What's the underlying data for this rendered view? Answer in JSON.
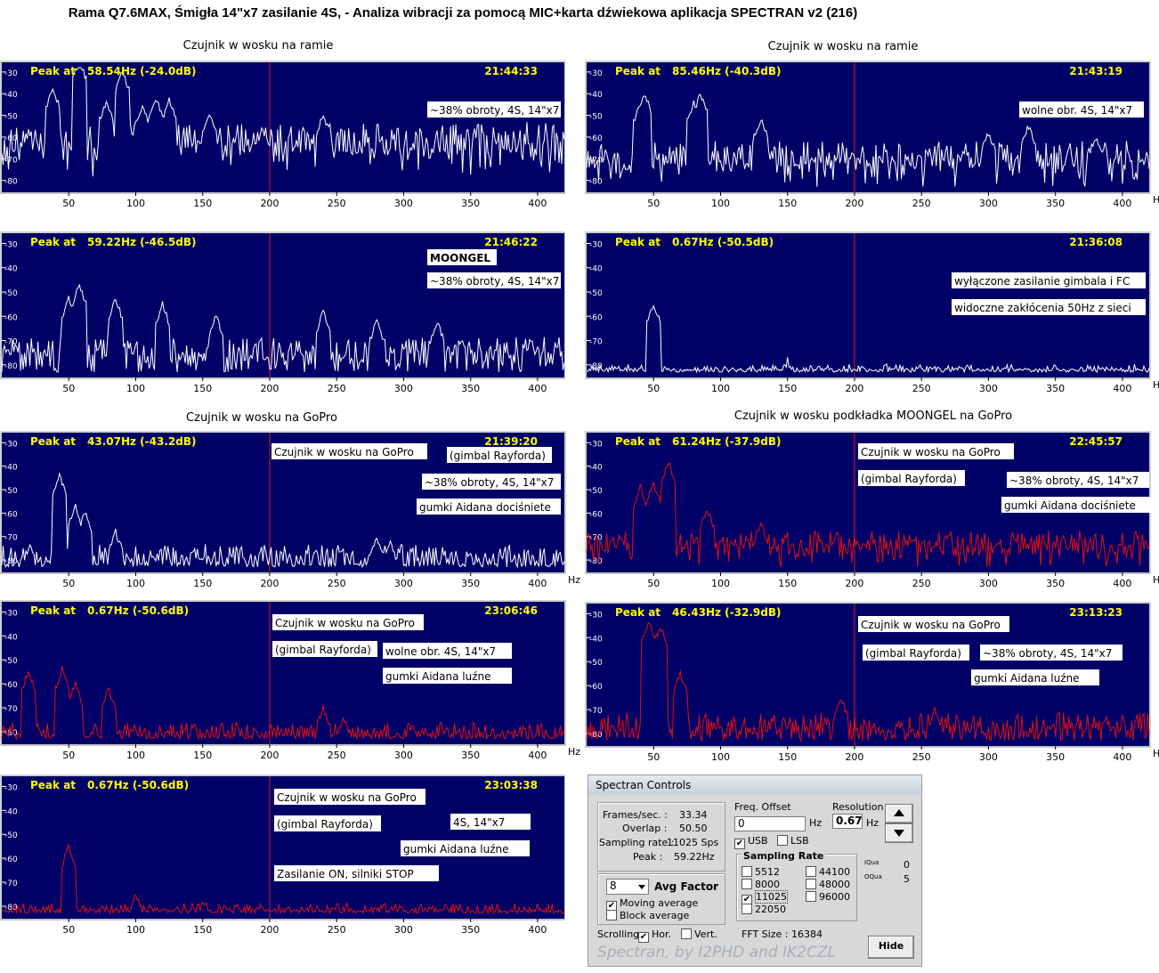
{
  "title": "Rama Q7.6MAX, Śmigła 14\"x7 zasilanie 4S,  - Analiza wibracji za pomocą MIC+karta dźwiekowa aplikacja SPECTRAN v2 (216)",
  "captions": {
    "left_top": "Czujnik w wosku na ramie",
    "right_top": "Czujnik w wosku na ramie",
    "left_mid": "Czujnik w wosku na GoPro",
    "right_mid": "Czujnik w wosku podkładka MOONGEL na GoPro"
  },
  "colors": {
    "plot_bg": "#000066",
    "white_trace": "#ffffff",
    "red_trace": "#dd1111",
    "peak_text": "#ffff00",
    "marker": "#cc2222"
  },
  "chart_data": [
    {
      "type": "line",
      "id": "p1",
      "peak_label": "Peak at",
      "peak_value": "58.54Hz (-24.0dB)",
      "time": "21:44:33",
      "color": "white",
      "xlim": [
        0,
        420
      ],
      "ylim": [
        -83,
        -28
      ],
      "x_ticks": [
        "50",
        "100",
        "150",
        "200",
        "250",
        "300",
        "350",
        "400"
      ],
      "y_ticks": [
        "-30",
        "-40",
        "-50",
        "-60",
        "-70",
        "-80"
      ],
      "x_unit": "Hz",
      "marker_x": 200,
      "annotations": [
        "~38% obroty, 4S, 14\"x7"
      ],
      "peaks": [
        [
          38,
          -38
        ],
        [
          58,
          -25
        ],
        [
          78,
          -44
        ],
        [
          90,
          -30
        ],
        [
          105,
          -46
        ],
        [
          115,
          -42
        ],
        [
          125,
          -43
        ],
        [
          155,
          -50
        ],
        [
          195,
          -57
        ],
        [
          240,
          -50
        ]
      ],
      "floor": -60,
      "noise": 9,
      "decay": 0.01
    },
    {
      "type": "line",
      "id": "p2",
      "peak_label": "Peak at",
      "peak_value": "85.46Hz (-40.3dB)",
      "time": "21:43:19",
      "color": "white",
      "xlim": [
        0,
        420
      ],
      "ylim": [
        -83,
        -28
      ],
      "x_ticks": [
        "50",
        "100",
        "150",
        "200",
        "250",
        "300",
        "350",
        "400"
      ],
      "y_ticks": [
        "-30",
        "-40",
        "-50",
        "-60",
        "-70",
        "-80"
      ],
      "x_unit": "Hz",
      "marker_x": 200,
      "annotations": [
        "wolne obr. 4S, 14\"x7"
      ],
      "peaks": [
        [
          40,
          -45
        ],
        [
          43,
          -40
        ],
        [
          80,
          -44
        ],
        [
          85,
          -40
        ],
        [
          130,
          -52
        ],
        [
          300,
          -58
        ],
        [
          330,
          -55
        ],
        [
          380,
          -60
        ]
      ],
      "floor": -68,
      "noise": 8,
      "decay": 0.0
    },
    {
      "type": "line",
      "id": "p3",
      "peak_label": "Peak at",
      "peak_value": "59.22Hz (-46.5dB)",
      "time": "21:46:22",
      "color": "white",
      "xlim": [
        0,
        420
      ],
      "ylim": [
        -83,
        -28
      ],
      "x_ticks": [
        "50",
        "100",
        "150",
        "200",
        "250",
        "300",
        "350",
        "400"
      ],
      "y_ticks": [
        "-30",
        "-40",
        "-50",
        "-60",
        "-70",
        "-80"
      ],
      "x_unit": "Hz",
      "marker_x": 200,
      "annotations": [
        "MOONGEL",
        "~38% obroty, 4S, 14\"x7"
      ],
      "peaks": [
        [
          50,
          -53
        ],
        [
          58,
          -47
        ],
        [
          85,
          -53
        ],
        [
          120,
          -55
        ],
        [
          160,
          -60
        ],
        [
          240,
          -58
        ],
        [
          280,
          -62
        ],
        [
          325,
          -62
        ],
        [
          395,
          -70
        ]
      ],
      "floor": -74,
      "noise": 7,
      "decay": 0.0
    },
    {
      "type": "line",
      "id": "p4",
      "peak_label": "Peak at",
      "peak_value": "0.67Hz (-50.5dB)",
      "time": "21:36:08",
      "color": "white",
      "xlim": [
        0,
        420
      ],
      "ylim": [
        -83,
        -28
      ],
      "x_ticks": [
        "50",
        "100",
        "150",
        "200",
        "250",
        "300",
        "350",
        "400"
      ],
      "y_ticks": [
        "-30",
        "-40",
        "-50",
        "-60",
        "-70",
        "-80"
      ],
      "x_unit": "Hz",
      "marker_x": 200,
      "annotations": [
        "wyłączone zasilanie gimbala i FC",
        "widoczne zakłócenia 50Hz z sieci"
      ],
      "peaks": [
        [
          50,
          -55
        ],
        [
          150,
          -78
        ]
      ],
      "floor": -82,
      "noise": 3,
      "decay": 0.0
    },
    {
      "type": "line",
      "id": "p5",
      "peak_label": "Peak at",
      "peak_value": "43.07Hz (-43.2dB)",
      "time": "21:39:20",
      "color": "white",
      "xlim": [
        0,
        420
      ],
      "ylim": [
        -83,
        -28
      ],
      "x_ticks": [
        "50",
        "100",
        "150",
        "200",
        "250",
        "300",
        "350",
        "400"
      ],
      "y_ticks": [
        "-30",
        "-40",
        "-50",
        "-60",
        "-70",
        "-80"
      ],
      "x_unit": "Hz",
      "marker_x": 200,
      "annotations": [
        "Czujnik w wosku na GoPro",
        "(gimbal Rayforda)",
        "~38% obroty, 4S, 14\"x7",
        "gumki Aidana dociśniete"
      ],
      "peaks": [
        [
          43,
          -44
        ],
        [
          55,
          -57
        ],
        [
          62,
          -60
        ],
        [
          85,
          -68
        ],
        [
          280,
          -70
        ],
        [
          290,
          -72
        ]
      ],
      "floor": -78,
      "noise": 6,
      "decay": 0.0
    },
    {
      "type": "line",
      "id": "p6",
      "peak_label": "Peak at",
      "peak_value": "61.24Hz (-37.9dB)",
      "time": "22:45:57",
      "color": "red",
      "xlim": [
        0,
        420
      ],
      "ylim": [
        -83,
        -28
      ],
      "x_ticks": [
        "50",
        "100",
        "150",
        "200",
        "250",
        "300",
        "350",
        "400"
      ],
      "y_ticks": [
        "-30",
        "-40",
        "-50",
        "-60",
        "-70",
        "-80"
      ],
      "x_unit": "Hz",
      "marker_x": 200,
      "annotations": [
        "Czujnik w wosku na GoPro",
        "(gimbal Rayforda)",
        "~38% obroty, 4S, 14\"x7",
        "gumki Aidana dociśniete"
      ],
      "peaks": [
        [
          40,
          -49
        ],
        [
          50,
          -47
        ],
        [
          61,
          -38
        ],
        [
          90,
          -58
        ],
        [
          130,
          -64
        ],
        [
          245,
          -80
        ]
      ],
      "floor": -72,
      "noise": 6,
      "decay": 0.0
    },
    {
      "type": "line",
      "id": "p7",
      "peak_label": "Peak at",
      "peak_value": "0.67Hz (-50.6dB)",
      "time": "23:06:46",
      "color": "red",
      "xlim": [
        0,
        420
      ],
      "ylim": [
        -83,
        -28
      ],
      "x_ticks": [
        "50",
        "100",
        "150",
        "200",
        "250",
        "300",
        "350",
        "400"
      ],
      "y_ticks": [
        "-30",
        "-40",
        "-50",
        "-60",
        "-70",
        "-80"
      ],
      "x_unit": "Hz",
      "marker_x": 200,
      "annotations": [
        "Czujnik w wosku na GoPro",
        "(gimbal Rayforda)",
        "wolne obr. 4S, 14\"x7",
        "gumki Aidana luźne"
      ],
      "peaks": [
        [
          20,
          -55
        ],
        [
          45,
          -54
        ],
        [
          55,
          -60
        ],
        [
          80,
          -62
        ],
        [
          240,
          -70
        ],
        [
          255,
          -74
        ]
      ],
      "floor": -80,
      "noise": 5,
      "decay": 0.0
    },
    {
      "type": "line",
      "id": "p8",
      "peak_label": "Peak at",
      "peak_value": "46.43Hz (-32.9dB)",
      "time": "23:13:23",
      "color": "red",
      "xlim": [
        0,
        420
      ],
      "ylim": [
        -83,
        -28
      ],
      "x_ticks": [
        "50",
        "100",
        "150",
        "200",
        "250",
        "300",
        "350",
        "400"
      ],
      "y_ticks": [
        "-30",
        "-40",
        "-50",
        "-60",
        "-70",
        "-80"
      ],
      "x_unit": "Hz",
      "marker_x": 200,
      "annotations": [
        "Czujnik w wosku na GoPro",
        "(gimbal Rayforda)",
        "~38% obroty, 4S, 14\"x7",
        "gumki Aidana luźne"
      ],
      "peaks": [
        [
          46,
          -33
        ],
        [
          55,
          -35
        ],
        [
          70,
          -55
        ],
        [
          190,
          -65
        ],
        [
          260,
          -70
        ]
      ],
      "floor": -76,
      "noise": 6,
      "decay": 0.0
    },
    {
      "type": "line",
      "id": "p9",
      "peak_label": "Peak at",
      "peak_value": "0.67Hz (-50.6dB)",
      "time": "23:03:38",
      "color": "red",
      "xlim": [
        0,
        420
      ],
      "ylim": [
        -83,
        -28
      ],
      "x_ticks": [
        "50",
        "100",
        "150",
        "200",
        "250",
        "300",
        "350",
        "400"
      ],
      "y_ticks": [
        "-30",
        "-40",
        "-50",
        "-60",
        "-70",
        "-80"
      ],
      "x_unit": "Hz",
      "marker_x": 200,
      "annotations": [
        "Czujnik w wosku na GoPro",
        "(gimbal Rayforda)",
        "4S, 14\"x7",
        "gumki Aidana luźne",
        "Zasilanie ON, silniki STOP"
      ],
      "peaks": [
        [
          50,
          -55
        ],
        [
          100,
          -75
        ],
        [
          150,
          -79
        ],
        [
          250,
          -79
        ]
      ],
      "floor": -81,
      "noise": 3,
      "decay": 0.0
    }
  ],
  "controls": {
    "title": "Spectran Controls",
    "stats": [
      {
        "label": "Frames/sec. :",
        "value": "33.34"
      },
      {
        "label": "Overlap :",
        "value": "50.50"
      },
      {
        "label": "Sampling rate :",
        "value": "11025 Sps"
      },
      {
        "label": "Peak :",
        "value": "59.22Hz"
      }
    ],
    "freq_offset_label": "Freq. Offset",
    "freq_offset_value": "0",
    "hz": "Hz",
    "resolution_label": "Resolution",
    "resolution_value": "0.67",
    "usb": "USB",
    "lsb": "LSB",
    "sampling_rate_label": "Sampling Rate",
    "rates": [
      "5512",
      "44100",
      "8000",
      "48000",
      "11025",
      "96000",
      "22050"
    ],
    "iqua_label": "IQua",
    "iqua_value": "0",
    "oqua_label": "OQua",
    "oqua_value": "5",
    "avg_value": "8",
    "avg_factor": "Avg Factor",
    "moving_average": "Moving average",
    "block_average": "Block average",
    "scrolling": "Scrolling",
    "hor": "Hor.",
    "vert": "Vert.",
    "fft_size": "FFT Size : 16384",
    "brand": "Spectran, by I2PHD and IK2CZL",
    "hide": "Hide",
    "check": "✔"
  }
}
